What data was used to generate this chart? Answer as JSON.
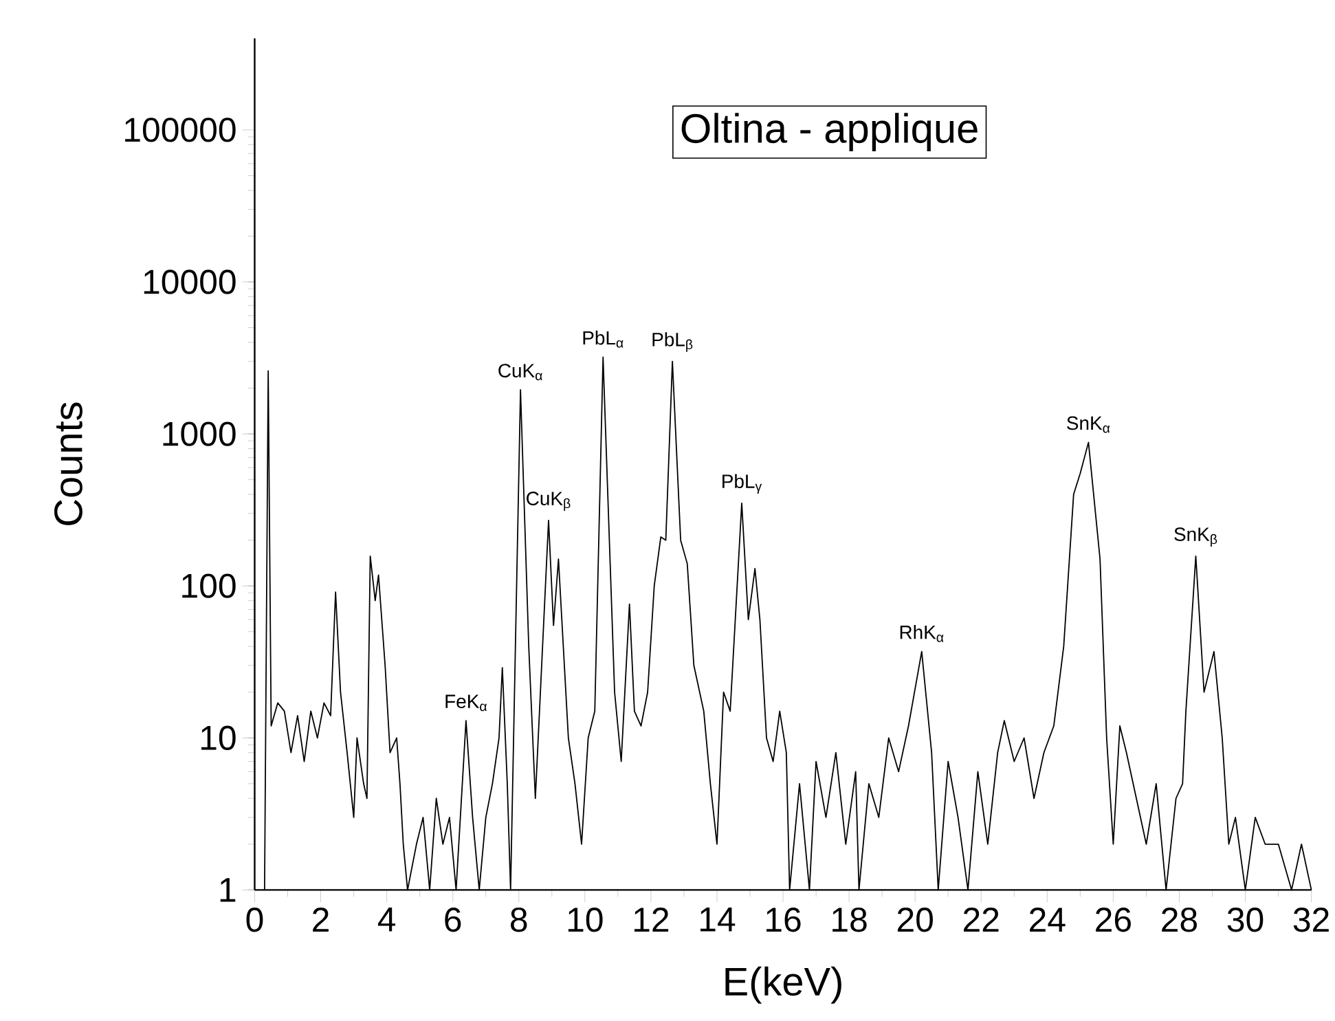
{
  "chart_data": {
    "type": "line",
    "title": "Oltina - applique",
    "xlabel": "E(keV)",
    "ylabel": "Counts",
    "log": "y",
    "grid": false,
    "marker": "none",
    "line_style": "solid",
    "xlim": [
      0,
      32
    ],
    "xticks": [
      0,
      2,
      4,
      6,
      8,
      10,
      12,
      14,
      16,
      18,
      20,
      22,
      24,
      26,
      28,
      30,
      32
    ],
    "ylim": [
      1,
      400000
    ],
    "yticks": [
      1,
      10,
      100,
      1000,
      10000,
      100000
    ],
    "series": [
      {
        "color": "#000000",
        "x": [
          0.3,
          0.41,
          0.5,
          0.7,
          0.9,
          1.1,
          1.3,
          1.5,
          1.7,
          1.9,
          2.1,
          2.3,
          2.45,
          2.6,
          2.8,
          3.0,
          3.1,
          3.3,
          3.4,
          3.5,
          3.65,
          3.75,
          3.95,
          4.1,
          4.3,
          4.4,
          4.5,
          4.63,
          4.9,
          5.1,
          5.3,
          5.5,
          5.7,
          5.9,
          6.1,
          6.4,
          6.6,
          6.8,
          7.0,
          7.2,
          7.4,
          7.5,
          7.65,
          7.75,
          8.05,
          8.3,
          8.5,
          8.9,
          9.05,
          9.2,
          9.5,
          9.7,
          9.9,
          10.1,
          10.3,
          10.55,
          10.9,
          11.1,
          11.35,
          11.5,
          11.7,
          11.9,
          12.1,
          12.3,
          12.45,
          12.65,
          12.9,
          13.1,
          13.3,
          13.6,
          13.8,
          14.0,
          14.2,
          14.4,
          14.75,
          14.95,
          15.15,
          15.3,
          15.5,
          15.7,
          15.9,
          16.1,
          16.2,
          16.5,
          16.8,
          17.0,
          17.3,
          17.6,
          17.9,
          18.2,
          18.3,
          18.6,
          18.9,
          19.2,
          19.5,
          19.8,
          20.2,
          20.5,
          20.7,
          21.0,
          21.3,
          21.6,
          21.9,
          22.2,
          22.5,
          22.7,
          23.0,
          23.3,
          23.6,
          23.9,
          24.2,
          24.5,
          24.8,
          25.0,
          25.25,
          25.6,
          25.8,
          26.0,
          26.2,
          26.4,
          26.7,
          27.0,
          27.3,
          27.6,
          27.9,
          28.1,
          28.2,
          28.5,
          28.75,
          29.05,
          29.3,
          29.5,
          29.7,
          30.0,
          30.3,
          30.6,
          31.0,
          31.4,
          31.7,
          32.0
        ],
        "values": [
          1,
          2600,
          12,
          17,
          15,
          8,
          14,
          7,
          15,
          10,
          17,
          14,
          91,
          20,
          8,
          3,
          10,
          5,
          4,
          157,
          80,
          118,
          30,
          8,
          10,
          5,
          2,
          1,
          2,
          3,
          1,
          4,
          2,
          3,
          1,
          13,
          3,
          1,
          3,
          5,
          10,
          29,
          5,
          1,
          1950,
          40,
          4,
          270,
          55,
          150,
          10,
          5,
          2,
          10,
          15,
          3200,
          20,
          7,
          76,
          15,
          12,
          20,
          100,
          210,
          200,
          3000,
          200,
          140,
          30,
          15,
          5,
          2,
          20,
          15,
          350,
          60,
          130,
          60,
          10,
          7,
          15,
          8,
          1,
          5,
          1,
          7,
          3,
          8,
          2,
          6,
          1,
          5,
          3,
          10,
          6,
          12,
          37,
          8,
          1,
          7,
          3,
          1,
          6,
          2,
          8,
          13,
          7,
          10,
          4,
          8,
          12,
          40,
          400,
          550,
          880,
          150,
          10,
          2,
          12,
          8,
          4,
          2,
          5,
          1,
          4,
          5,
          15,
          157,
          20,
          37,
          10,
          2,
          3,
          1,
          3,
          2,
          2,
          1,
          2,
          1
        ]
      }
    ],
    "annotations": [
      {
        "text": "FeK$_{α}$",
        "x": 6.4,
        "y": 13
      },
      {
        "text": "CuK$_{α}$",
        "x": 8.05,
        "y": 1950
      },
      {
        "text": "CuK$_{β}$",
        "x": 8.9,
        "y": 270
      },
      {
        "text": "PbL$_{α}$",
        "x": 10.55,
        "y": 3200
      },
      {
        "text": "PbL$_{β}$",
        "x": 12.65,
        "y": 3000
      },
      {
        "text": "PbL$_{γ}$",
        "x": 14.75,
        "y": 350
      },
      {
        "text": "RhK$_{α}$",
        "x": 20.2,
        "y": 37
      },
      {
        "text": "SnK$_{α}$",
        "x": 25.25,
        "y": 880
      },
      {
        "text": "SnK$_{β}$",
        "x": 28.5,
        "y": 157
      }
    ]
  }
}
